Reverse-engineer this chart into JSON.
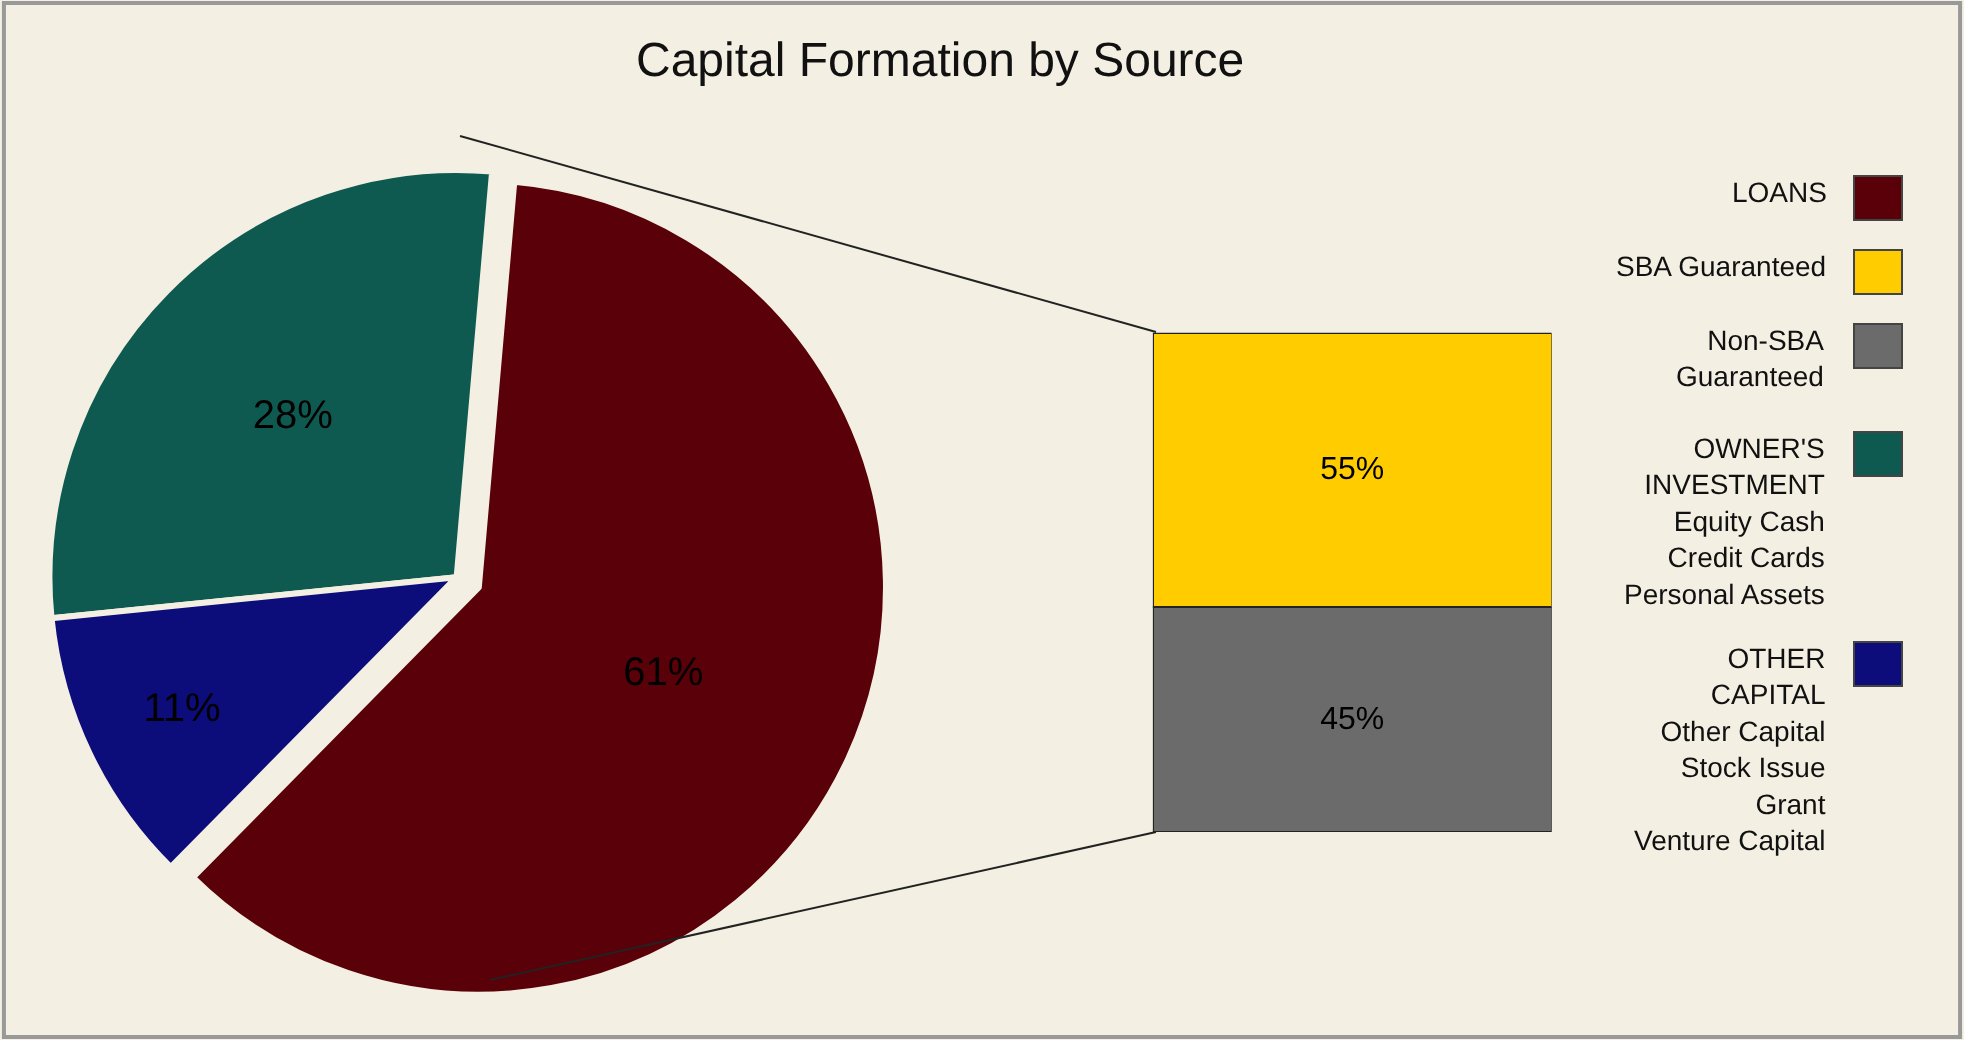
{
  "chart_data": [
    {
      "type": "pie",
      "title": "Capital Formation by Source",
      "categories": [
        "LOANS",
        "OWNER'S\nINVESTMENT\nEquity Cash\nCredit Cards\nPersonal Assets",
        "OTHER\nCAPITAL\nOther Capital\nStock Issue\nGrant\nVenture Capital"
      ],
      "values": [
        61,
        28,
        11
      ],
      "value_labels": [
        "61%",
        "28%",
        "11%"
      ],
      "colors": [
        "#5a0008",
        "#0f5a50",
        "#0c0c7a"
      ],
      "legend": "right"
    },
    {
      "type": "bar",
      "stacked": true,
      "categories": [
        null
      ],
      "series": [
        {
          "name": "Non-SBA\nGuaranteed",
          "color": "#6b6b6b",
          "values": [
            45
          ],
          "value_labels": [
            "45%"
          ]
        },
        {
          "name": "SBA Guaranteed",
          "color": "#ffcc00",
          "values": [
            55
          ],
          "value_labels": [
            "55%"
          ]
        }
      ],
      "legend": "right"
    }
  ]
}
